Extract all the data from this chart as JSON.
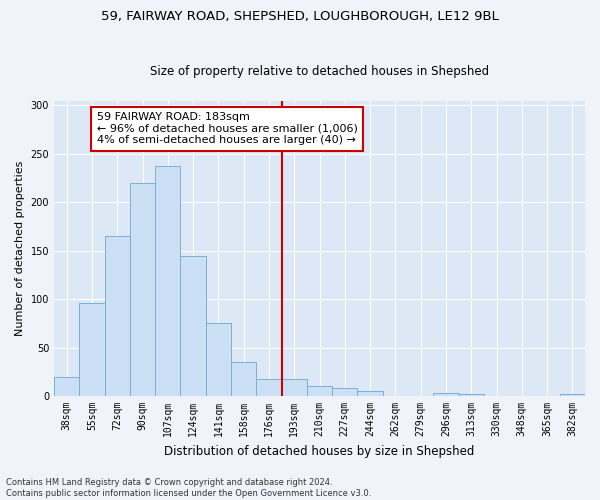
{
  "title1": "59, FAIRWAY ROAD, SHEPSHED, LOUGHBOROUGH, LE12 9BL",
  "title2": "Size of property relative to detached houses in Shepshed",
  "xlabel": "Distribution of detached houses by size in Shepshed",
  "ylabel": "Number of detached properties",
  "footnote": "Contains HM Land Registry data © Crown copyright and database right 2024.\nContains public sector information licensed under the Open Government Licence v3.0.",
  "bar_labels": [
    "38sqm",
    "55sqm",
    "72sqm",
    "90sqm",
    "107sqm",
    "124sqm",
    "141sqm",
    "158sqm",
    "176sqm",
    "193sqm",
    "210sqm",
    "227sqm",
    "244sqm",
    "262sqm",
    "279sqm",
    "296sqm",
    "313sqm",
    "330sqm",
    "348sqm",
    "365sqm",
    "382sqm"
  ],
  "bar_values": [
    20,
    96,
    165,
    220,
    237,
    145,
    75,
    35,
    18,
    18,
    10,
    8,
    5,
    0,
    0,
    3,
    2,
    0,
    0,
    0,
    2
  ],
  "bar_color": "#cce0f5",
  "bar_edge_color": "#7ab0d4",
  "vline_x": 8.5,
  "vline_color": "#cc0000",
  "annotation_text": "59 FAIRWAY ROAD: 183sqm\n← 96% of detached houses are smaller (1,006)\n4% of semi-detached houses are larger (40) →",
  "annotation_box_color": "#ffffff",
  "annotation_box_edge": "#cc0000",
  "ylim": [
    0,
    305
  ],
  "yticks": [
    0,
    50,
    100,
    150,
    200,
    250,
    300
  ],
  "background_color": "#dce8f5",
  "grid_color": "#ffffff",
  "fig_background": "#f0f4fa",
  "title1_fontsize": 9.5,
  "title2_fontsize": 8.5,
  "xlabel_fontsize": 8.5,
  "ylabel_fontsize": 8,
  "tick_fontsize": 7,
  "annotation_fontsize": 8,
  "footnote_fontsize": 6
}
